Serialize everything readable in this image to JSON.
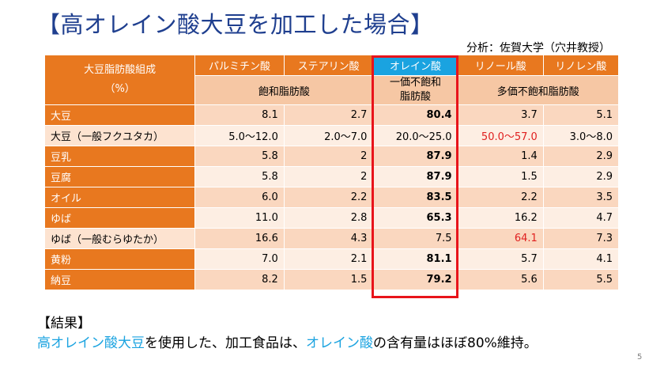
{
  "title": "【高オレイン酸大豆を加工した場合】",
  "source": "分析：佐賀大学（穴井教授）",
  "table": {
    "corner_line1": "大豆脂肪酸組成",
    "corner_line2": "（%）",
    "acids": {
      "palmitic": "パルミチン酸",
      "stearic": "ステアリン酸",
      "oleic": "オレイン酸",
      "linoleic": "リノール酸",
      "linolenic": "リノレン酸"
    },
    "categories": {
      "saturated": "飽和脂肪酸",
      "mono_line1": "一価不飽和",
      "mono_line2": "脂肪酸",
      "poly": "多価不飽和脂肪酸"
    },
    "rows": [
      {
        "label": "大豆",
        "palmitic": "8.1",
        "stearic": "2.7",
        "oleic": "80.4",
        "linoleic": "3.7",
        "linolenic": "5.1"
      },
      {
        "label": "大豆（一般フクユタカ）",
        "palmitic": "5.0～12.0",
        "stearic": "2.0～7.0",
        "oleic": "20.0～25.0",
        "linoleic": "50.0～57.0",
        "linolenic": "3.0～8.0"
      },
      {
        "label": "豆乳",
        "palmitic": "5.8",
        "stearic": "2",
        "oleic": "87.9",
        "linoleic": "1.4",
        "linolenic": "2.9"
      },
      {
        "label": "豆腐",
        "palmitic": "5.8",
        "stearic": "2",
        "oleic": "87.9",
        "linoleic": "1.5",
        "linolenic": "2.9"
      },
      {
        "label": "オイル",
        "palmitic": "6.0",
        "stearic": "2.2",
        "oleic": "83.5",
        "linoleic": "2.2",
        "linolenic": "3.5"
      },
      {
        "label": "ゆば",
        "palmitic": "11.0",
        "stearic": "2.8",
        "oleic": "65.3",
        "linoleic": "16.2",
        "linolenic": "4.7"
      },
      {
        "label": "ゆば（一般むらゆたか）",
        "palmitic": "16.6",
        "stearic": "4.3",
        "oleic": "7.5",
        "linoleic": "64.1",
        "linolenic": "7.3"
      },
      {
        "label": "黄粉",
        "palmitic": "7.0",
        "stearic": "2.1",
        "oleic": "81.1",
        "linoleic": "5.7",
        "linolenic": "4.1"
      },
      {
        "label": "納豆",
        "palmitic": "8.2",
        "stearic": "1.5",
        "oleic": "79.2",
        "linoleic": "5.6",
        "linolenic": "5.5"
      }
    ]
  },
  "result": {
    "heading": "【結果】",
    "part1": "高オレイン酸大豆",
    "part2": "を使用した、加工食品は、",
    "part3": "オレイン酸",
    "part4": "の含有量はほぼ80%維持。"
  },
  "page_number": "5",
  "colors": {
    "title": "#1f3f8f",
    "header_orange": "#e8781f",
    "oleic_header_blue": "#1aa3e0",
    "highlight_red": "#e8141b",
    "red_value": "#e02020"
  }
}
